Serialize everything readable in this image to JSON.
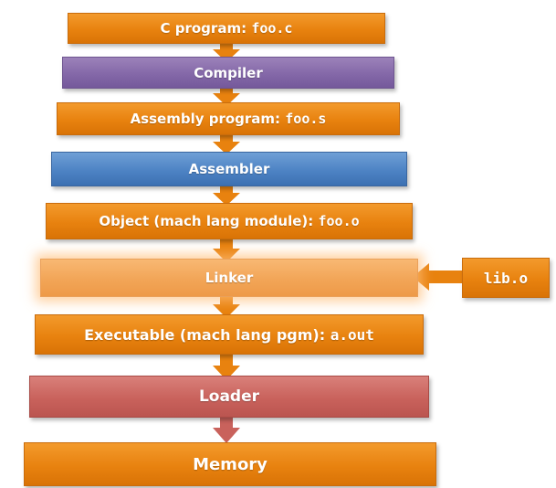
{
  "diagram": {
    "nodes": [
      {
        "id": "c-program",
        "label": "C program: ",
        "code": "foo.c"
      },
      {
        "id": "compiler",
        "label": "Compiler",
        "code": ""
      },
      {
        "id": "assembly-program",
        "label": "Assembly program: ",
        "code": "foo.s"
      },
      {
        "id": "assembler",
        "label": "Assembler",
        "code": ""
      },
      {
        "id": "object",
        "label": "Object (mach lang module): ",
        "code": "foo.o"
      },
      {
        "id": "linker",
        "label": "Linker",
        "code": ""
      },
      {
        "id": "executable",
        "label": "Executable (mach lang pgm): ",
        "code": "a.out"
      },
      {
        "id": "loader",
        "label": "Loader",
        "code": ""
      },
      {
        "id": "memory",
        "label": "Memory",
        "code": ""
      }
    ],
    "library": {
      "code": "lib.o"
    },
    "colors": {
      "file_node": "#e8820f",
      "compiler": "#8468a8",
      "assembler": "#4d83c4",
      "linker": "#f2a557",
      "loader": "#c9625c",
      "arrow": "#e8820f"
    },
    "edges": [
      [
        "c-program",
        "compiler"
      ],
      [
        "compiler",
        "assembly-program"
      ],
      [
        "assembly-program",
        "assembler"
      ],
      [
        "assembler",
        "object"
      ],
      [
        "object",
        "linker"
      ],
      [
        "lib.o",
        "linker"
      ],
      [
        "linker",
        "executable"
      ],
      [
        "executable",
        "loader"
      ],
      [
        "loader",
        "memory"
      ]
    ]
  }
}
